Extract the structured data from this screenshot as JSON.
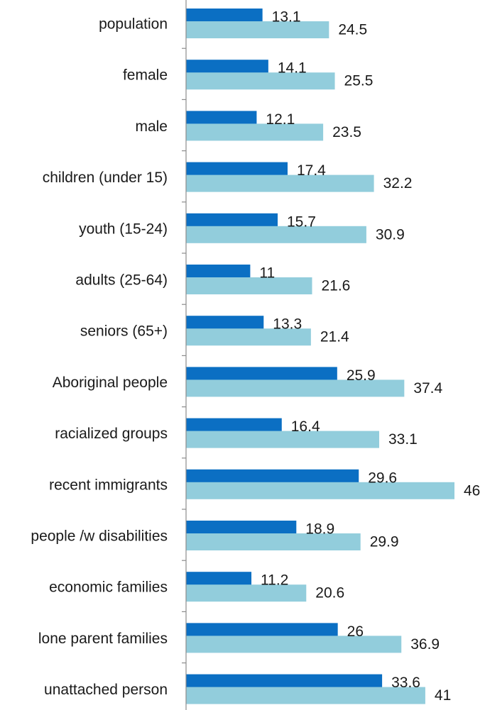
{
  "chart_data": {
    "type": "bar",
    "orientation": "horizontal",
    "categories": [
      "population",
      "female",
      "male",
      "children (under 15)",
      "youth (15-24)",
      "adults (25-64)",
      "seniors (65+)",
      "Aboriginal people",
      "racialized groups",
      "recent immigrants",
      "people /w disabilities",
      "economic families",
      "lone parent families",
      "unattached person"
    ],
    "series": [
      {
        "color": "#0b6fc3",
        "values": [
          13.1,
          14.1,
          12.1,
          17.4,
          15.7,
          11,
          13.3,
          25.9,
          16.4,
          29.6,
          18.9,
          11.2,
          26,
          33.6
        ],
        "labels": [
          "13.1",
          "14.1",
          "12.1",
          "17.4",
          "15.7",
          "11",
          "13.3",
          "25.9",
          "16.4",
          "29.6",
          "18.9",
          "11.2",
          "26",
          "33.6"
        ]
      },
      {
        "color": "#92cddc",
        "values": [
          24.5,
          25.5,
          23.5,
          32.2,
          30.9,
          21.6,
          21.4,
          37.4,
          33.1,
          46,
          29.9,
          20.6,
          36.9,
          41
        ],
        "labels": [
          "24.5",
          "25.5",
          "23.5",
          "32.2",
          "30.9",
          "21.6",
          "21.4",
          "37.4",
          "33.1",
          "46",
          "29.9",
          "20.6",
          "36.9",
          "41"
        ]
      }
    ],
    "xlim": [
      0,
      46
    ],
    "grid": false,
    "data_labels": true
  }
}
